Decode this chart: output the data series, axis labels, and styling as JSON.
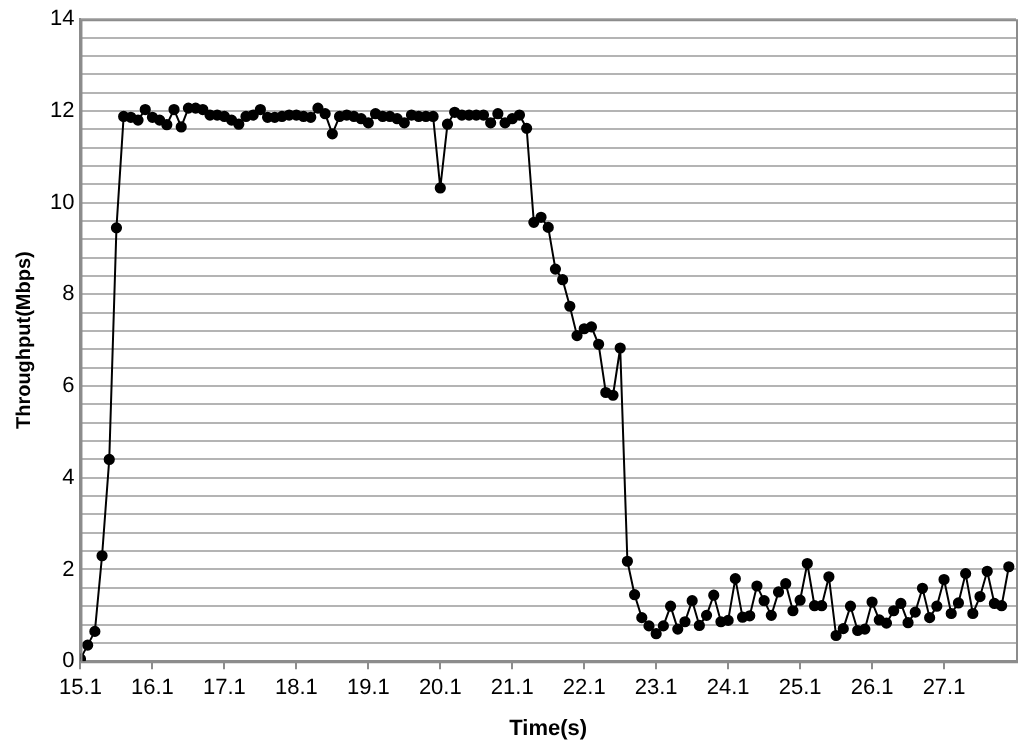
{
  "chart_data": {
    "type": "line",
    "xlabel": "Time(s)",
    "ylabel": "Throughput(Mbps)",
    "xlim": [
      15.1,
      28.1
    ],
    "xticks": [
      15.1,
      16.1,
      17.1,
      18.1,
      19.1,
      20.1,
      21.1,
      22.1,
      23.1,
      24.1,
      25.1,
      26.1,
      27.1
    ],
    "ylim": [
      0,
      14
    ],
    "yticks": [
      0,
      {
        "value": 0.4,
        "label": null
      },
      {
        "value": 0.8,
        "label": null
      },
      {
        "value": 1.2,
        "label": null
      },
      {
        "value": 1.6,
        "label": null
      },
      2,
      {
        "value": 2.4,
        "label": null
      },
      {
        "value": 2.8,
        "label": null
      },
      {
        "value": 3.2,
        "label": null
      },
      {
        "value": 3.6,
        "label": null
      },
      4,
      {
        "value": 4.4,
        "label": null
      },
      {
        "value": 4.8,
        "label": null
      },
      {
        "value": 5.2,
        "label": null
      },
      {
        "value": 5.6,
        "label": null
      },
      6,
      {
        "value": 6.4,
        "label": null
      },
      {
        "value": 6.8,
        "label": null
      },
      {
        "value": 7.2,
        "label": null
      },
      {
        "value": 7.6,
        "label": null
      },
      8,
      {
        "value": 8.4,
        "label": null
      },
      {
        "value": 8.8,
        "label": null
      },
      {
        "value": 9.2,
        "label": null
      },
      {
        "value": 9.6,
        "label": null
      },
      10,
      {
        "value": 10.4,
        "label": null
      },
      {
        "value": 10.8,
        "label": null
      },
      {
        "value": 11.2,
        "label": null
      },
      {
        "value": 11.6,
        "label": null
      },
      12,
      {
        "value": 12.4,
        "label": null
      },
      {
        "value": 12.8,
        "label": null
      },
      {
        "value": 13.2,
        "label": null
      },
      {
        "value": 13.6,
        "label": null
      },
      14
    ],
    "grid": "y",
    "legend": false,
    "marker": "circle",
    "line_style": "solid",
    "x": [
      15.1,
      15.2,
      15.3,
      15.4,
      15.5,
      15.6,
      15.7,
      15.8,
      15.9,
      16.0,
      16.1,
      16.2,
      16.3,
      16.4,
      16.5,
      16.6,
      16.7,
      16.8,
      16.9,
      17.0,
      17.1,
      17.2,
      17.3,
      17.4,
      17.5,
      17.6,
      17.7,
      17.8,
      17.9,
      18.0,
      18.1,
      18.2,
      18.3,
      18.4,
      18.5,
      18.6,
      18.7,
      18.8,
      18.9,
      19.0,
      19.1,
      19.2,
      19.3,
      19.4,
      19.5,
      19.6,
      19.7,
      19.8,
      19.9,
      20.0,
      20.1,
      20.2,
      20.3,
      20.4,
      20.5,
      20.6,
      20.7,
      20.8,
      20.9,
      21.0,
      21.1,
      21.2,
      21.3,
      21.4,
      21.5,
      21.6,
      21.7,
      21.8,
      21.9,
      22.0,
      22.1,
      22.2,
      22.3,
      22.4,
      22.5,
      22.6,
      22.7,
      22.8,
      22.9,
      23.0,
      23.1,
      23.2,
      23.3,
      23.4,
      23.5,
      23.6,
      23.7,
      23.8,
      23.9,
      24.0,
      24.1,
      24.2,
      24.3,
      24.4,
      24.5,
      24.6,
      24.7,
      24.8,
      24.9,
      25.0,
      25.1,
      25.2,
      25.3,
      25.4,
      25.5,
      25.6,
      25.7,
      25.8,
      25.9,
      26.0,
      26.1,
      26.2,
      26.3,
      26.4,
      26.5,
      26.6,
      26.7,
      26.8,
      26.9,
      27.0,
      27.1,
      27.2,
      27.3,
      27.4,
      27.5,
      27.6,
      27.7,
      27.8,
      27.9,
      28.0
    ],
    "series": [
      {
        "color": "#000000",
        "values": [
          0.05,
          0.35,
          0.65,
          2.3,
          4.4,
          9.45,
          11.88,
          11.86,
          11.8,
          12.03,
          11.86,
          11.8,
          11.7,
          12.03,
          11.65,
          12.06,
          12.06,
          12.03,
          11.91,
          11.91,
          11.88,
          11.8,
          11.71,
          11.88,
          11.91,
          12.03,
          11.86,
          11.86,
          11.88,
          11.91,
          11.91,
          11.88,
          11.86,
          12.06,
          11.94,
          11.5,
          11.88,
          11.91,
          11.88,
          11.83,
          11.74,
          11.94,
          11.88,
          11.88,
          11.83,
          11.74,
          11.91,
          11.88,
          11.88,
          11.88,
          10.32,
          11.71,
          11.97,
          11.91,
          11.91,
          11.91,
          11.91,
          11.74,
          11.94,
          11.74,
          11.83,
          11.91,
          11.62,
          9.57,
          9.68,
          9.46,
          8.55,
          8.32,
          7.74,
          7.1,
          7.25,
          7.29,
          6.91,
          5.86,
          5.8,
          6.83,
          2.18,
          1.45,
          0.95,
          0.77,
          0.6,
          0.77,
          1.2,
          0.7,
          0.86,
          1.32,
          0.78,
          1.0,
          1.44,
          0.86,
          0.89,
          1.8,
          0.96,
          0.99,
          1.64,
          1.32,
          1.0,
          1.51,
          1.69,
          1.1,
          1.33,
          2.13,
          1.21,
          1.21,
          1.84,
          0.56,
          0.71,
          1.2,
          0.67,
          0.7,
          1.29,
          0.9,
          0.83,
          1.1,
          1.26,
          0.84,
          1.07,
          1.59,
          0.95,
          1.2,
          1.78,
          1.04,
          1.27,
          1.91,
          1.04,
          1.41,
          1.96,
          1.26,
          1.21,
          2.06
        ]
      }
    ]
  }
}
